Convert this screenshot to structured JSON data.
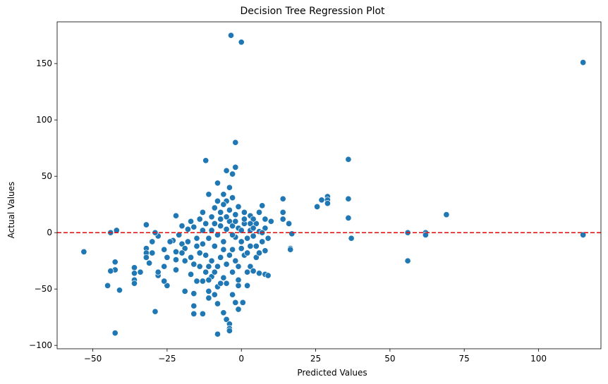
{
  "chart_data": {
    "type": "scatter",
    "title": "Decision Tree Regression Plot",
    "xlabel": "Predicted Values",
    "ylabel": "Actual Values",
    "xlim": [
      -62,
      121
    ],
    "ylim": [
      -103,
      187
    ],
    "xticks": [
      -50,
      -25,
      0,
      25,
      50,
      75,
      100
    ],
    "yticks": [
      -100,
      -50,
      0,
      50,
      100,
      150
    ],
    "grid": false,
    "point_color": "#1f77b4",
    "reference_line": {
      "y": 0,
      "color": "#e31a1c",
      "style": "dashed"
    },
    "points": [
      [
        -3.5,
        175
      ],
      [
        0,
        169
      ],
      [
        115,
        151
      ],
      [
        -2,
        80
      ],
      [
        -12,
        64
      ],
      [
        36,
        65
      ],
      [
        -2,
        58
      ],
      [
        -5,
        55
      ],
      [
        -3,
        52
      ],
      [
        -8,
        44
      ],
      [
        -11,
        34
      ],
      [
        -3,
        31
      ],
      [
        29,
        32
      ],
      [
        29,
        29
      ],
      [
        29,
        26
      ],
      [
        36,
        30
      ],
      [
        25.5,
        23
      ],
      [
        27,
        29
      ],
      [
        14,
        30
      ],
      [
        69,
        16
      ],
      [
        36,
        13
      ],
      [
        62,
        0
      ],
      [
        62,
        -2
      ],
      [
        56,
        0
      ],
      [
        56,
        -25
      ],
      [
        115,
        -2
      ],
      [
        37,
        -5
      ],
      [
        16.5,
        -14
      ],
      [
        16.5,
        -15
      ],
      [
        17,
        -1
      ],
      [
        16,
        8
      ],
      [
        14,
        18
      ],
      [
        14,
        12
      ],
      [
        7,
        24
      ],
      [
        -22,
        15
      ],
      [
        -32,
        7
      ],
      [
        -44,
        0
      ],
      [
        -42,
        2
      ],
      [
        -53,
        -17
      ],
      [
        -45,
        -47
      ],
      [
        -42.5,
        -26
      ],
      [
        -42.5,
        -33
      ],
      [
        -44,
        -34
      ],
      [
        -41,
        -51
      ],
      [
        -42.5,
        -89
      ],
      [
        -36,
        -31
      ],
      [
        -36,
        -36
      ],
      [
        -36,
        -42
      ],
      [
        -36,
        -45
      ],
      [
        -34,
        -35
      ],
      [
        -31,
        -27
      ],
      [
        -29,
        -70
      ],
      [
        -28,
        -38
      ],
      [
        -28,
        -35
      ],
      [
        -25,
        -47
      ],
      [
        -26,
        -43
      ],
      [
        -30,
        -18
      ],
      [
        -32,
        -14
      ],
      [
        -32,
        -18
      ],
      [
        -32,
        -22
      ],
      [
        -30,
        -8
      ],
      [
        -28,
        -3
      ],
      [
        -29,
        0
      ],
      [
        -26,
        -15
      ],
      [
        -25,
        -22
      ],
      [
        -26,
        -30
      ],
      [
        -23,
        -7
      ],
      [
        -22,
        -17
      ],
      [
        -22,
        -24
      ],
      [
        -22,
        -33
      ],
      [
        -19,
        -52
      ],
      [
        -16,
        -65
      ],
      [
        -16,
        -72
      ],
      [
        -13,
        -72
      ],
      [
        -11,
        -52
      ],
      [
        -11,
        -58
      ],
      [
        -10,
        -39
      ],
      [
        -8,
        -48
      ],
      [
        -8,
        -63
      ],
      [
        -8,
        -90
      ],
      [
        -6,
        -71
      ],
      [
        -5,
        -77
      ],
      [
        -4,
        -81
      ],
      [
        -4,
        -85
      ],
      [
        -4,
        -87
      ],
      [
        -2,
        -62
      ],
      [
        -1,
        -68
      ],
      [
        0.5,
        -62
      ],
      [
        -3,
        -55
      ],
      [
        -5,
        -45
      ],
      [
        -1,
        -47
      ],
      [
        2,
        -47
      ],
      [
        3,
        -30
      ],
      [
        4,
        -34
      ],
      [
        6,
        -36
      ],
      [
        8,
        -37
      ],
      [
        -6,
        -40
      ],
      [
        -13,
        -43
      ],
      [
        -15,
        -43
      ],
      [
        -16,
        -54
      ],
      [
        -17,
        -37
      ],
      [
        -19,
        -25
      ],
      [
        -20,
        -10
      ],
      [
        -14,
        -30
      ],
      [
        -12,
        -20
      ],
      [
        -9,
        -35
      ],
      [
        -7,
        -22
      ],
      [
        -5,
        -28
      ],
      [
        -3,
        -15
      ],
      [
        -1,
        -30
      ],
      [
        1,
        -20
      ],
      [
        3,
        -12
      ],
      [
        5,
        -22
      ],
      [
        6,
        -18
      ],
      [
        8,
        -16
      ],
      [
        9,
        -5
      ],
      [
        8,
        4
      ],
      [
        8,
        12
      ],
      [
        6,
        18
      ],
      [
        3,
        15
      ],
      [
        1,
        18
      ],
      [
        -1,
        23
      ],
      [
        -2,
        16
      ],
      [
        -4,
        20
      ],
      [
        -5,
        28
      ],
      [
        -6,
        25
      ],
      [
        -7,
        18
      ],
      [
        -9,
        22
      ],
      [
        -10,
        14
      ],
      [
        -12,
        8
      ],
      [
        -14,
        12
      ],
      [
        -16,
        5
      ],
      [
        -18,
        3
      ],
      [
        -20,
        6
      ],
      [
        -15,
        -5
      ],
      [
        -13,
        -10
      ],
      [
        -11,
        -5
      ],
      [
        -9,
        -12
      ],
      [
        -8,
        -2
      ],
      [
        -7,
        6
      ],
      [
        -6,
        -8
      ],
      [
        -5,
        3
      ],
      [
        -4,
        10
      ],
      [
        -3,
        6
      ],
      [
        -2,
        -4
      ],
      [
        -1,
        4
      ],
      [
        0,
        -8
      ],
      [
        1,
        8
      ],
      [
        2,
        -5
      ],
      [
        3,
        2
      ],
      [
        4,
        -3
      ],
      [
        5,
        8
      ],
      [
        6,
        1
      ],
      [
        7,
        -8
      ],
      [
        -10,
        -25
      ],
      [
        -8,
        -30
      ],
      [
        -6,
        -15
      ],
      [
        -4,
        -20
      ],
      [
        -2,
        -25
      ],
      [
        0,
        -14
      ],
      [
        2,
        -18
      ],
      [
        4,
        12
      ],
      [
        -3,
        -35
      ],
      [
        -7,
        -45
      ],
      [
        -11,
        -30
      ],
      [
        -17,
        -22
      ],
      [
        -19,
        -14
      ],
      [
        -21,
        -2
      ],
      [
        -24,
        -8
      ],
      [
        -17,
        10
      ],
      [
        -13,
        2
      ],
      [
        -9,
        8
      ],
      [
        -5,
        14
      ],
      [
        -2,
        10
      ],
      [
        1,
        12
      ],
      [
        3,
        8
      ],
      [
        5,
        -12
      ],
      [
        7,
        0
      ],
      [
        -14,
        -18
      ],
      [
        -12,
        -35
      ],
      [
        -16,
        -28
      ],
      [
        -18,
        -8
      ],
      [
        -20,
        -18
      ],
      [
        -6,
        34
      ],
      [
        -4,
        40
      ],
      [
        -7,
        12
      ],
      [
        -8,
        28
      ],
      [
        10,
        10
      ],
      [
        9,
        -38
      ],
      [
        2,
        -35
      ],
      [
        -1,
        -42
      ],
      [
        -9,
        -55
      ],
      [
        -11,
        -42
      ],
      [
        -15,
        -12
      ],
      [
        -13,
        18
      ],
      [
        -10,
        2
      ],
      [
        -3,
        -2
      ],
      [
        0,
        2
      ],
      [
        4,
        4
      ]
    ]
  }
}
